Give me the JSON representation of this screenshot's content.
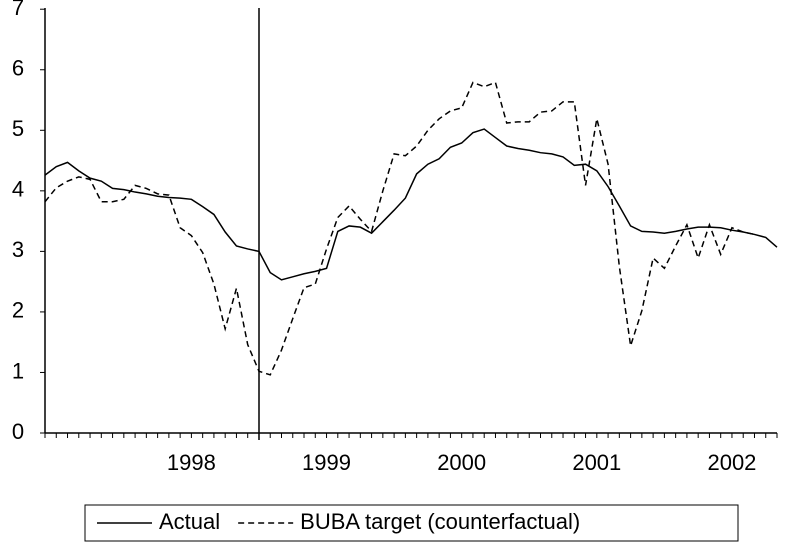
{
  "chart_data": {
    "type": "line",
    "categories": [
      null,
      null,
      null,
      null,
      null,
      null,
      null,
      null,
      null,
      null,
      null,
      null,
      null,
      "1998",
      null,
      null,
      null,
      null,
      null,
      null,
      null,
      null,
      null,
      null,
      null,
      "1999",
      null,
      null,
      null,
      null,
      null,
      null,
      null,
      null,
      null,
      null,
      null,
      "2000",
      null,
      null,
      null,
      null,
      null,
      null,
      null,
      null,
      null,
      null,
      null,
      "2001",
      null,
      null,
      null,
      null,
      null,
      null,
      null,
      null,
      null,
      null,
      null,
      "2002",
      null,
      null,
      null,
      null
    ],
    "series": [
      {
        "name": "Actual",
        "color": "#000000",
        "line_style": "solid",
        "values": [
          4.26,
          4.4,
          4.47,
          4.33,
          4.21,
          4.16,
          4.04,
          4.02,
          3.98,
          3.95,
          3.91,
          3.89,
          3.88,
          3.86,
          3.74,
          3.61,
          3.32,
          3.09,
          3.04,
          3.0,
          2.65,
          2.53,
          2.58,
          2.63,
          2.67,
          2.72,
          3.33,
          3.42,
          3.4,
          3.3,
          3.49,
          3.68,
          3.88,
          4.28,
          4.44,
          4.53,
          4.72,
          4.79,
          4.96,
          5.02,
          4.88,
          4.74,
          4.7,
          4.67,
          4.63,
          4.61,
          4.56,
          4.42,
          4.44,
          4.33,
          4.07,
          3.75,
          3.42,
          3.33,
          3.32,
          3.3,
          3.33,
          3.37,
          3.4,
          3.4,
          3.39,
          3.35,
          3.32,
          3.28,
          3.23,
          3.07
        ]
      },
      {
        "name": "BUBA target (counterfactual)",
        "color": "#000000",
        "line_style": "dashed",
        "values": [
          3.82,
          4.05,
          4.16,
          4.23,
          4.19,
          3.82,
          3.82,
          3.86,
          4.09,
          4.04,
          3.95,
          3.93,
          3.39,
          3.26,
          2.98,
          2.46,
          1.72,
          2.39,
          1.46,
          1.02,
          0.96,
          1.37,
          1.89,
          2.4,
          2.46,
          3.04,
          3.56,
          3.75,
          3.53,
          3.33,
          4.0,
          4.61,
          4.58,
          4.74,
          5.0,
          5.19,
          5.32,
          5.37,
          5.79,
          5.72,
          5.79,
          5.12,
          5.14,
          5.14,
          5.3,
          5.32,
          5.47,
          5.47,
          4.09,
          5.19,
          4.44,
          2.75,
          1.44,
          2.02,
          2.89,
          2.72,
          3.09,
          3.44,
          2.89,
          3.44,
          2.95,
          3.39,
          3.32,
          3.28,
          null,
          null
        ]
      }
    ],
    "ylim": [
      0,
      7.02
    ],
    "yticks": [
      0,
      1,
      2,
      3,
      4,
      5,
      6,
      7
    ],
    "grid": false,
    "legend": "bottom"
  }
}
